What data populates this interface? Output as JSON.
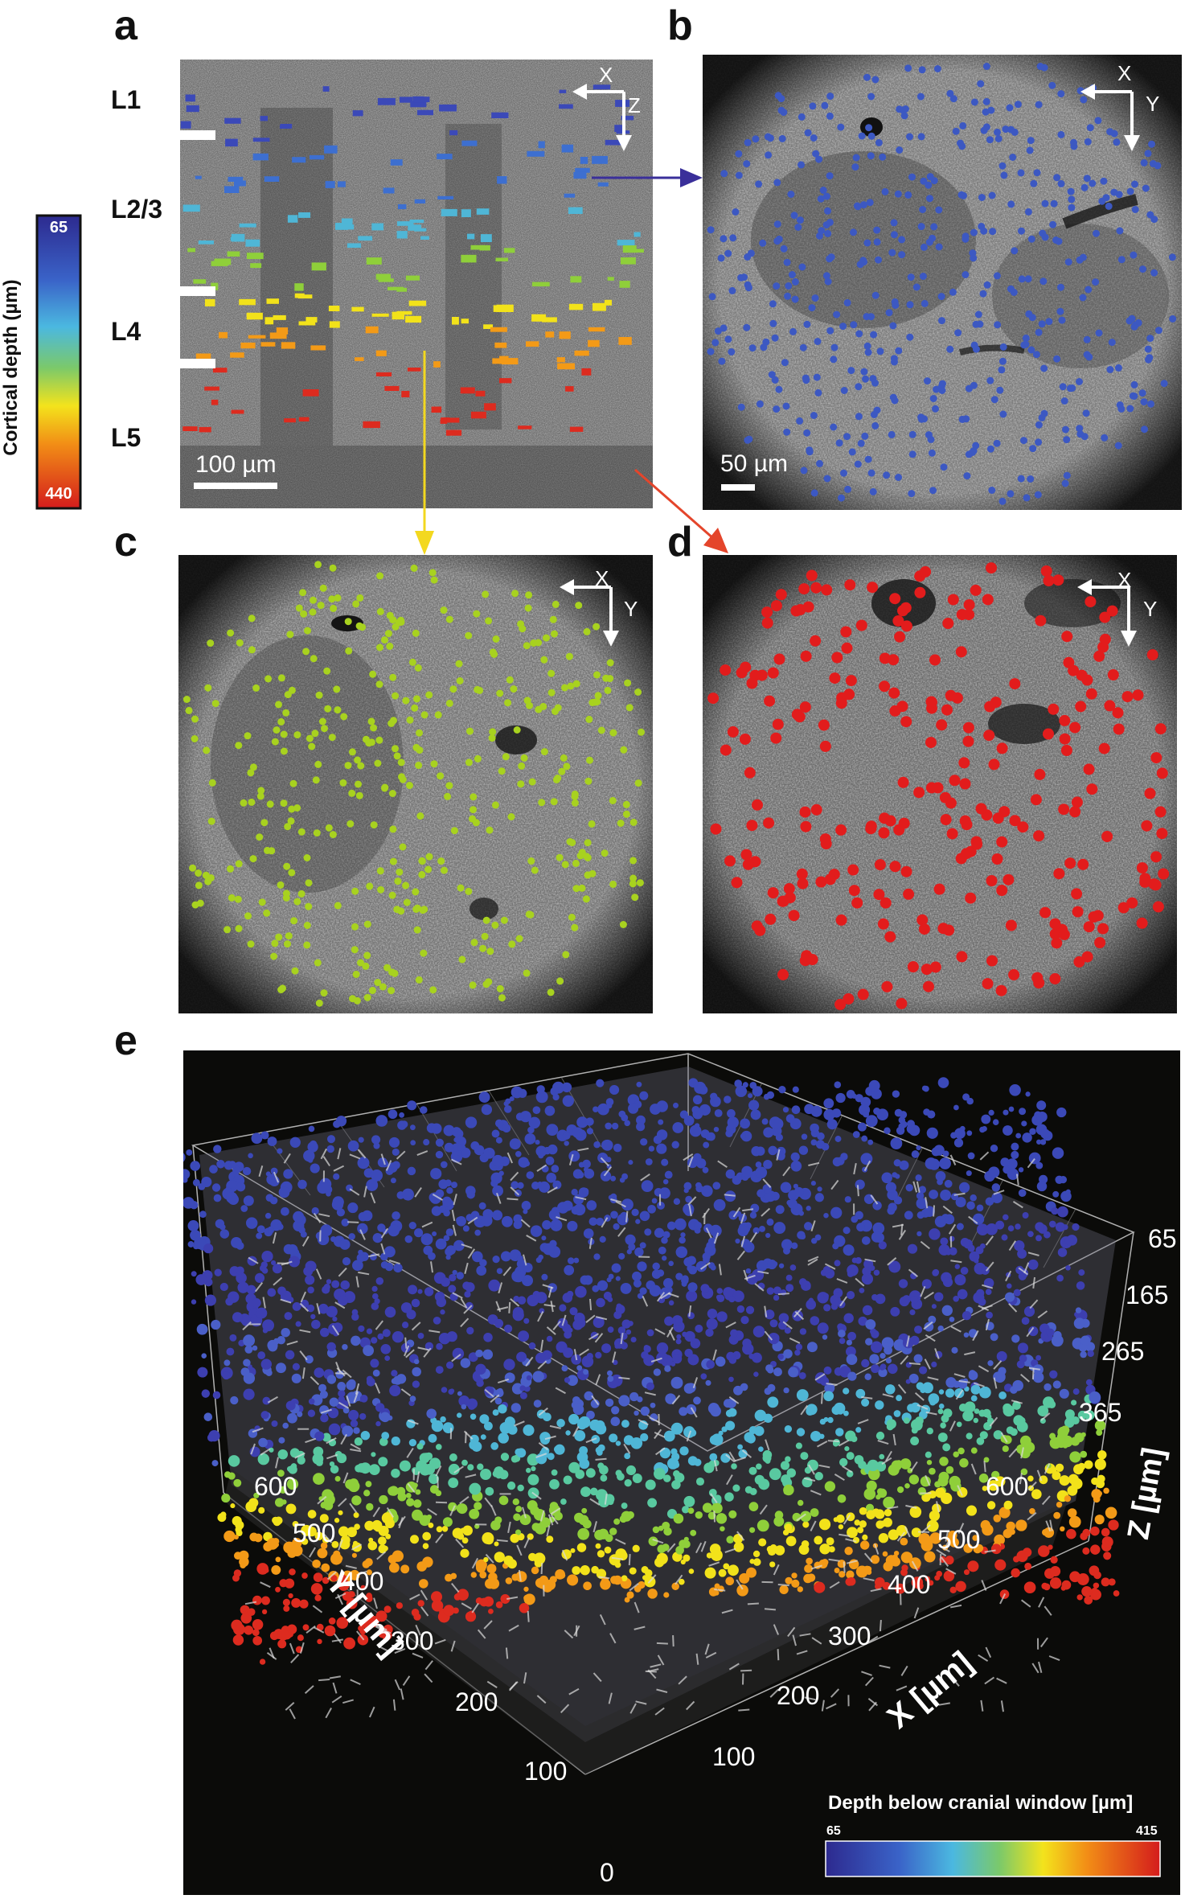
{
  "panel_labels": {
    "a": "a",
    "b": "b",
    "c": "c",
    "d": "d",
    "e": "e"
  },
  "layers": {
    "l1": "L1",
    "l23": "L2/3",
    "l4": "L4",
    "l5": "L5"
  },
  "colorbar_left": {
    "title": "Cortical depth (µm)",
    "top_value": "65",
    "bottom_value": "440"
  },
  "scale_bars": {
    "a": "100 µm",
    "b": "50 µm"
  },
  "axes": {
    "x": "X",
    "y": "Y",
    "z": "Z"
  },
  "panel_e": {
    "z_ticks": [
      "65",
      "165",
      "265",
      "365"
    ],
    "z_label": "Z [µm]",
    "y_ticks": [
      "600",
      "500",
      "400",
      "300",
      "200",
      "100",
      "0"
    ],
    "y_label": "Y [µm]",
    "x_ticks": [
      "600",
      "500",
      "400",
      "300",
      "200",
      "100"
    ],
    "x_label": "X [µm]",
    "colorbar": {
      "title": "Depth below cranial window [µm]",
      "min": "65",
      "max": "415"
    }
  },
  "colors": {
    "blue": "#3b49b8",
    "cyan": "#4fb6d6",
    "green": "#8fcf3a",
    "yellow": "#f2e21a",
    "orange": "#f39a17",
    "red": "#dd2b1f",
    "arrow_blue": "#3a2f9a",
    "arrow_yellow": "#f3d81f",
    "arrow_red": "#e4452b"
  }
}
